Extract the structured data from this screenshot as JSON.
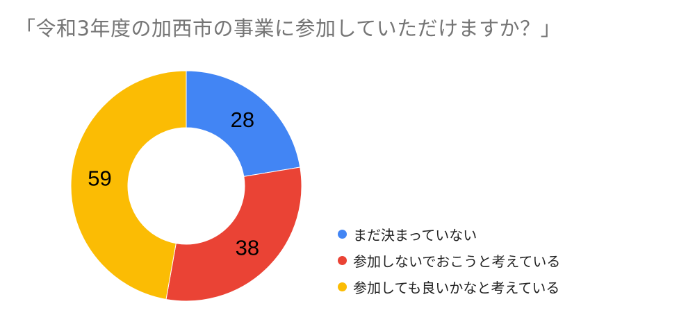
{
  "chart_data": {
    "type": "pie",
    "title": "「令和3年度の加西市の事業に参加していただけますか？」",
    "categories": [
      "まだ決まっていない",
      "参加しないでおこうと考えている",
      "参加しても良いかなと考えている"
    ],
    "values": [
      28,
      38,
      59
    ],
    "colors": [
      "#4285F4",
      "#EA4335",
      "#FBBC04"
    ],
    "donut": true,
    "legend_position": "bottom-right",
    "data_labels": [
      "28",
      "38",
      "59"
    ]
  }
}
